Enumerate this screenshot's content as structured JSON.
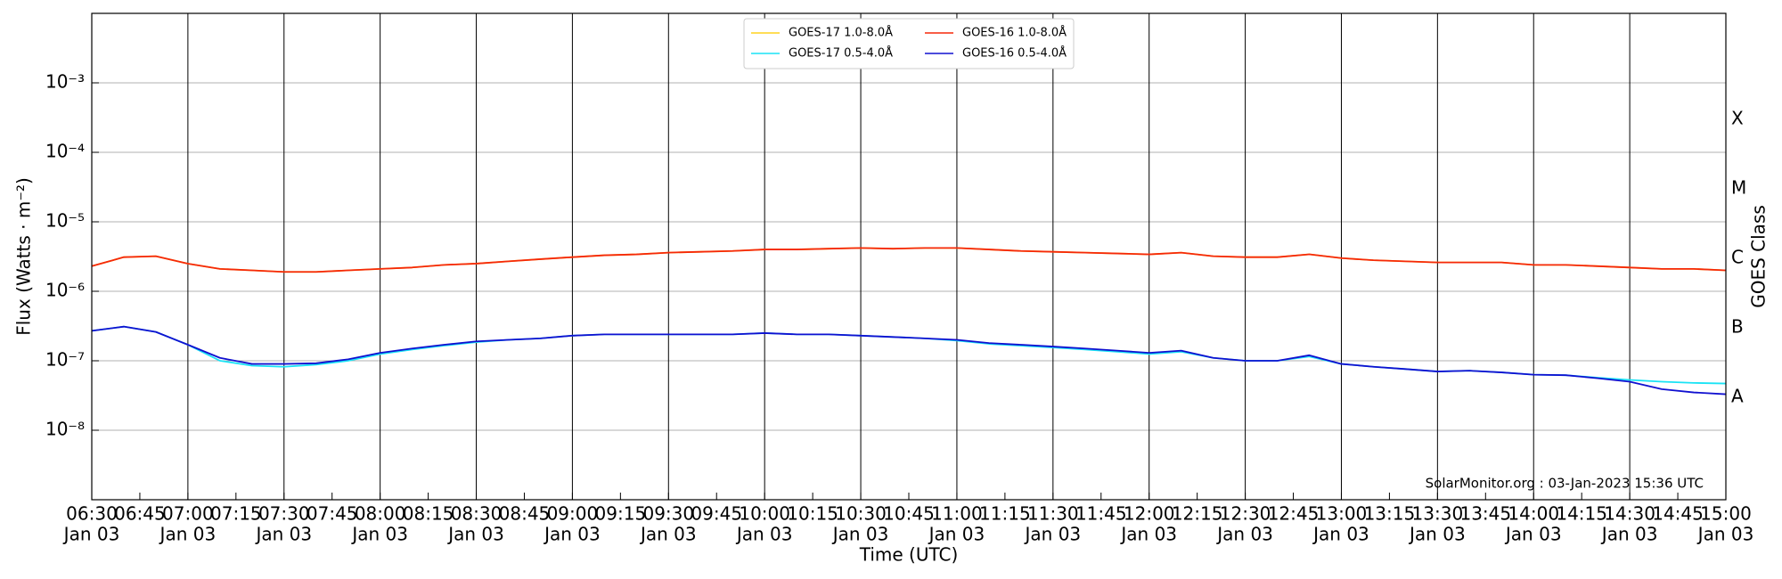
{
  "chart_data": {
    "type": "line",
    "xlabel": "Time (UTC)",
    "ylabel": "Flux (Watts · m⁻²)",
    "y2label": "GOES Class",
    "annotation": "SolarMonitor.org : 03-Jan-2023 15:36 UTC",
    "log_y": true,
    "grid": true,
    "legend": "upper center",
    "x": [
      "06:30",
      "06:40",
      "06:50",
      "07:00",
      "07:10",
      "07:20",
      "07:30",
      "07:40",
      "07:50",
      "08:00",
      "08:10",
      "08:20",
      "08:30",
      "08:40",
      "08:50",
      "09:00",
      "09:10",
      "09:20",
      "09:30",
      "09:40",
      "09:50",
      "10:00",
      "10:10",
      "10:20",
      "10:30",
      "10:40",
      "10:50",
      "11:00",
      "11:10",
      "11:20",
      "11:30",
      "11:40",
      "11:50",
      "12:00",
      "12:10",
      "12:20",
      "12:30",
      "12:40",
      "12:50",
      "13:00",
      "13:10",
      "13:20",
      "13:30",
      "13:40",
      "13:50",
      "14:00",
      "14:10",
      "14:20",
      "14:30",
      "14:40",
      "14:50",
      "15:00"
    ],
    "xlim": [
      "06:30",
      "15:00"
    ],
    "xticks": [
      {
        "value": "06:30",
        "label": [
          "06:30",
          "Jan 03"
        ]
      },
      "06:45",
      {
        "value": "07:00",
        "label": [
          "07:00",
          "Jan 03"
        ]
      },
      "07:15",
      {
        "value": "07:30",
        "label": [
          "07:30",
          "Jan 03"
        ]
      },
      "07:45",
      {
        "value": "08:00",
        "label": [
          "08:00",
          "Jan 03"
        ]
      },
      "08:15",
      {
        "value": "08:30",
        "label": [
          "08:30",
          "Jan 03"
        ]
      },
      "08:45",
      {
        "value": "09:00",
        "label": [
          "09:00",
          "Jan 03"
        ]
      },
      "09:15",
      {
        "value": "09:30",
        "label": [
          "09:30",
          "Jan 03"
        ]
      },
      "09:45",
      {
        "value": "10:00",
        "label": [
          "10:00",
          "Jan 03"
        ]
      },
      "10:15",
      {
        "value": "10:30",
        "label": [
          "10:30",
          "Jan 03"
        ]
      },
      "10:45",
      {
        "value": "11:00",
        "label": [
          "11:00",
          "Jan 03"
        ]
      },
      "11:15",
      {
        "value": "11:30",
        "label": [
          "11:30",
          "Jan 03"
        ]
      },
      "11:45",
      {
        "value": "12:00",
        "label": [
          "12:00",
          "Jan 03"
        ]
      },
      "12:15",
      {
        "value": "12:30",
        "label": [
          "12:30",
          "Jan 03"
        ]
      },
      "12:45",
      {
        "value": "13:00",
        "label": [
          "13:00",
          "Jan 03"
        ]
      },
      "13:15",
      {
        "value": "13:30",
        "label": [
          "13:30",
          "Jan 03"
        ]
      },
      "13:45",
      {
        "value": "14:00",
        "label": [
          "14:00",
          "Jan 03"
        ]
      },
      "14:15",
      {
        "value": "14:30",
        "label": [
          "14:30",
          "Jan 03"
        ]
      },
      "14:45",
      {
        "value": "15:00",
        "label": [
          "15:00",
          "Jan 03"
        ]
      }
    ],
    "ylim": [
      1e-09,
      0.01
    ],
    "yticks": [
      {
        "value": 1e-08,
        "label": "10⁻⁸"
      },
      {
        "value": 1e-07,
        "label": "10⁻⁷"
      },
      {
        "value": 1e-06,
        "label": "10⁻⁶"
      },
      {
        "value": 1e-05,
        "label": "10⁻⁵"
      },
      {
        "value": 0.0001,
        "label": "10⁻⁴"
      },
      {
        "value": 0.001,
        "label": "10⁻³"
      }
    ],
    "y2lim": [
      1e-09,
      0.01
    ],
    "y2ticks": [
      {
        "value": 3e-08,
        "label": "A"
      },
      {
        "value": 3e-07,
        "label": "B"
      },
      {
        "value": 3e-06,
        "label": "C"
      },
      {
        "value": 3e-05,
        "label": "M"
      },
      {
        "value": 0.0003,
        "label": "X"
      }
    ],
    "series": [
      {
        "name": "GOES-17 1.0-8.0Å",
        "color": "#ffd21f",
        "values": [
          2.3e-06,
          3.1e-06,
          3.2e-06,
          2.5e-06,
          2.1e-06,
          2e-06,
          1.9e-06,
          1.9e-06,
          2e-06,
          2.1e-06,
          2.2e-06,
          2.4e-06,
          2.5e-06,
          2.7e-06,
          2.9e-06,
          3.1e-06,
          3.3e-06,
          3.4e-06,
          3.6e-06,
          3.7e-06,
          3.8e-06,
          4e-06,
          4e-06,
          4.1e-06,
          4.2e-06,
          4.1e-06,
          4.2e-06,
          4.2e-06,
          4e-06,
          3.8e-06,
          3.7e-06,
          3.6e-06,
          3.5e-06,
          3.4e-06,
          3.6e-06,
          3.2e-06,
          3.1e-06,
          3.1e-06,
          3.4e-06,
          3e-06,
          2.8e-06,
          2.7e-06,
          2.6e-06,
          2.6e-06,
          2.6e-06,
          2.4e-06,
          2.4e-06,
          2.3e-06,
          2.2e-06,
          2.1e-06,
          2.1e-06,
          2e-06
        ]
      },
      {
        "name": "GOES-17 0.5-4.0Å",
        "color": "#19e3f5",
        "values": [
          2.7e-07,
          3.1e-07,
          2.6e-07,
          1.7e-07,
          1e-07,
          8.5e-08,
          8.2e-08,
          8.8e-08,
          1e-07,
          1.25e-07,
          1.45e-07,
          1.65e-07,
          1.85e-07,
          2e-07,
          2.1e-07,
          2.3e-07,
          2.4e-07,
          2.4e-07,
          2.4e-07,
          2.4e-07,
          2.4e-07,
          2.5e-07,
          2.4e-07,
          2.4e-07,
          2.3e-07,
          2.2e-07,
          2.1e-07,
          1.95e-07,
          1.75e-07,
          1.65e-07,
          1.55e-07,
          1.45e-07,
          1.35e-07,
          1.25e-07,
          1.35e-07,
          1.1e-07,
          1e-07,
          1e-07,
          1.15e-07,
          9e-08,
          8.2e-08,
          7.6e-08,
          7e-08,
          7.2e-08,
          6.8e-08,
          6.3e-08,
          6.2e-08,
          5.7e-08,
          5.3e-08,
          5e-08,
          4.8e-08,
          4.7e-08
        ]
      },
      {
        "name": "GOES-16 1.0-8.0Å",
        "color": "#f5280a",
        "values": [
          2.3e-06,
          3.1e-06,
          3.2e-06,
          2.5e-06,
          2.1e-06,
          2e-06,
          1.9e-06,
          1.9e-06,
          2e-06,
          2.1e-06,
          2.2e-06,
          2.4e-06,
          2.5e-06,
          2.7e-06,
          2.9e-06,
          3.1e-06,
          3.3e-06,
          3.4e-06,
          3.6e-06,
          3.7e-06,
          3.8e-06,
          4e-06,
          4e-06,
          4.1e-06,
          4.2e-06,
          4.1e-06,
          4.2e-06,
          4.2e-06,
          4e-06,
          3.8e-06,
          3.7e-06,
          3.6e-06,
          3.5e-06,
          3.4e-06,
          3.6e-06,
          3.2e-06,
          3.1e-06,
          3.1e-06,
          3.4e-06,
          3e-06,
          2.8e-06,
          2.7e-06,
          2.6e-06,
          2.6e-06,
          2.6e-06,
          2.4e-06,
          2.4e-06,
          2.3e-06,
          2.2e-06,
          2.1e-06,
          2.1e-06,
          2e-06
        ]
      },
      {
        "name": "GOES-16 0.5-4.0Å",
        "color": "#1010d0",
        "values": [
          2.7e-07,
          3.1e-07,
          2.6e-07,
          1.7e-07,
          1.1e-07,
          9e-08,
          9e-08,
          9.2e-08,
          1.05e-07,
          1.3e-07,
          1.5e-07,
          1.7e-07,
          1.9e-07,
          2e-07,
          2.1e-07,
          2.3e-07,
          2.4e-07,
          2.4e-07,
          2.4e-07,
          2.4e-07,
          2.4e-07,
          2.5e-07,
          2.4e-07,
          2.4e-07,
          2.3e-07,
          2.2e-07,
          2.1e-07,
          2e-07,
          1.8e-07,
          1.7e-07,
          1.6e-07,
          1.5e-07,
          1.4e-07,
          1.3e-07,
          1.4e-07,
          1.1e-07,
          1e-07,
          1e-07,
          1.2e-07,
          9e-08,
          8.2e-08,
          7.6e-08,
          7e-08,
          7.2e-08,
          6.8e-08,
          6.3e-08,
          6.2e-08,
          5.6e-08,
          5e-08,
          3.9e-08,
          3.5e-08,
          3.3e-08
        ]
      }
    ]
  }
}
